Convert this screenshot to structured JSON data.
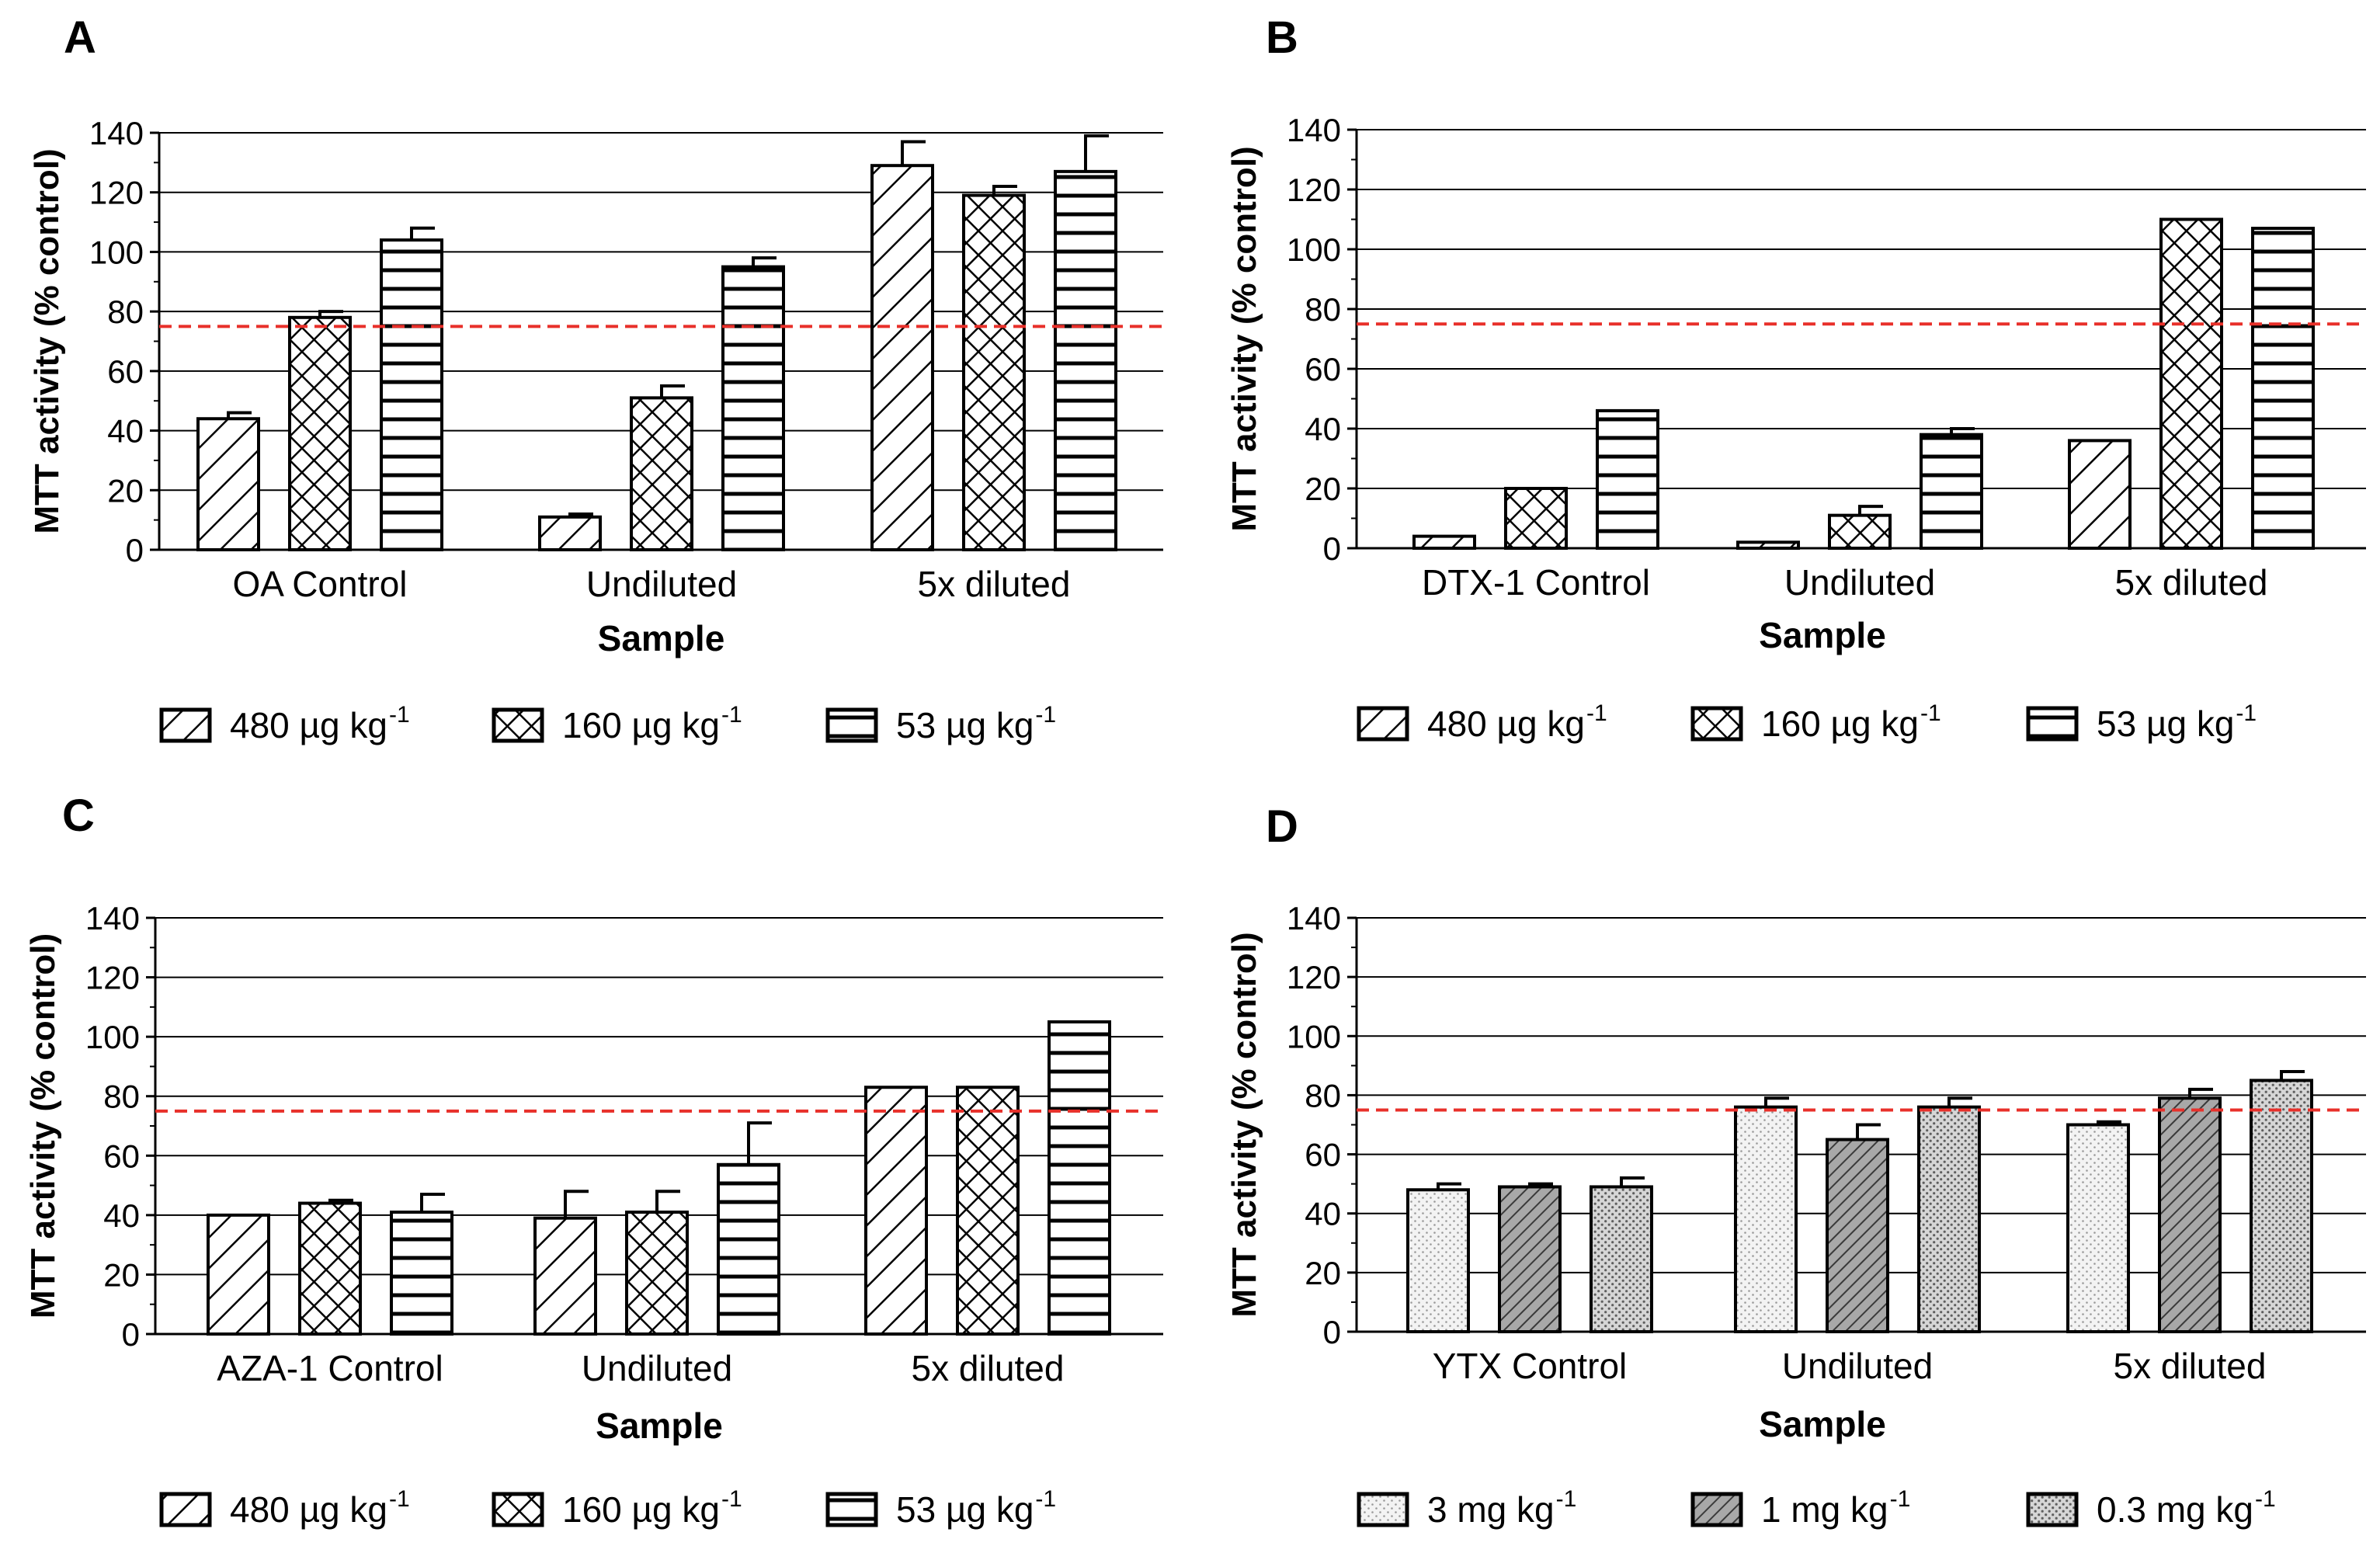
{
  "figure": {
    "panels": [
      "A",
      "B",
      "C",
      "D"
    ]
  },
  "chart_data": [
    {
      "panel": "A",
      "type": "bar",
      "title": "",
      "xlabel": "Sample",
      "ylabel": "MTT activity (% control)",
      "ylim": [
        0,
        140
      ],
      "yticks": [
        0,
        20,
        40,
        60,
        80,
        100,
        120,
        140
      ],
      "grid": true,
      "threshold": 75,
      "threshold_color": "#e8302a",
      "categories": [
        "OA Control",
        "Undiluted",
        "5x diluted"
      ],
      "series": [
        {
          "name": "480 µg kg",
          "sup": "-1",
          "pattern": "diag",
          "values": [
            44,
            11,
            129
          ],
          "errors": [
            2,
            1,
            8
          ]
        },
        {
          "name": "160 µg kg",
          "sup": "-1",
          "pattern": "cross",
          "values": [
            78,
            51,
            119
          ],
          "errors": [
            2,
            4,
            3
          ]
        },
        {
          "name": "53 µg kg",
          "sup": "-1",
          "pattern": "hlines",
          "values": [
            104,
            95,
            127
          ],
          "errors": [
            4,
            3,
            12
          ]
        }
      ]
    },
    {
      "panel": "B",
      "type": "bar",
      "title": "",
      "xlabel": "Sample",
      "ylabel": "MTT activity (% control)",
      "ylim": [
        0,
        140
      ],
      "yticks": [
        0,
        20,
        40,
        60,
        80,
        100,
        120,
        140
      ],
      "grid": true,
      "threshold": 75,
      "threshold_color": "#e8302a",
      "categories": [
        "DTX-1 Control",
        "Undiluted",
        "5x diluted"
      ],
      "series": [
        {
          "name": "480 µg kg",
          "sup": "-1",
          "pattern": "diag",
          "values": [
            4,
            2,
            36
          ],
          "errors": [
            0,
            0,
            0
          ]
        },
        {
          "name": "160 µg kg",
          "sup": "-1",
          "pattern": "cross",
          "values": [
            20,
            11,
            110
          ],
          "errors": [
            0,
            3,
            0
          ]
        },
        {
          "name": "53 µg kg",
          "sup": "-1",
          "pattern": "hlines",
          "values": [
            46,
            38,
            107
          ],
          "errors": [
            0,
            2,
            0
          ]
        }
      ]
    },
    {
      "panel": "C",
      "type": "bar",
      "title": "",
      "xlabel": "Sample",
      "ylabel": "MTT activity (% control)",
      "ylim": [
        0,
        140
      ],
      "yticks": [
        0,
        20,
        40,
        60,
        80,
        100,
        120,
        140
      ],
      "grid": true,
      "threshold": 75,
      "threshold_color": "#e8302a",
      "categories": [
        "AZA-1 Control",
        "Undiluted",
        "5x diluted"
      ],
      "series": [
        {
          "name": "480 µg kg",
          "sup": "-1",
          "pattern": "diag",
          "values": [
            40,
            39,
            83
          ],
          "errors": [
            0,
            9,
            0
          ]
        },
        {
          "name": "160 µg kg",
          "sup": "-1",
          "pattern": "cross",
          "values": [
            44,
            41,
            83
          ],
          "errors": [
            1,
            7,
            0
          ]
        },
        {
          "name": "53 µg kg",
          "sup": "-1",
          "pattern": "hlines",
          "values": [
            41,
            57,
            105
          ],
          "errors": [
            6,
            14,
            0
          ]
        }
      ]
    },
    {
      "panel": "D",
      "type": "bar",
      "title": "",
      "xlabel": "Sample",
      "ylabel": "MTT activity (% control)",
      "ylim": [
        0,
        140
      ],
      "yticks": [
        0,
        20,
        40,
        60,
        80,
        100,
        120,
        140
      ],
      "grid": true,
      "threshold": 75,
      "threshold_color": "#e8302a",
      "categories": [
        "YTX Control",
        "Undiluted",
        "5x diluted"
      ],
      "series": [
        {
          "name": "3 mg kg",
          "sup": "-1",
          "pattern": "lightdots",
          "values": [
            48,
            76,
            70
          ],
          "errors": [
            2,
            3,
            1
          ]
        },
        {
          "name": "1 mg kg",
          "sup": "-1",
          "pattern": "darkdiag",
          "values": [
            49,
            65,
            79
          ],
          "errors": [
            1,
            5,
            3
          ]
        },
        {
          "name": "0.3 mg kg",
          "sup": "-1",
          "pattern": "densedots",
          "values": [
            49,
            76,
            85
          ],
          "errors": [
            3,
            3,
            3
          ]
        }
      ]
    }
  ]
}
